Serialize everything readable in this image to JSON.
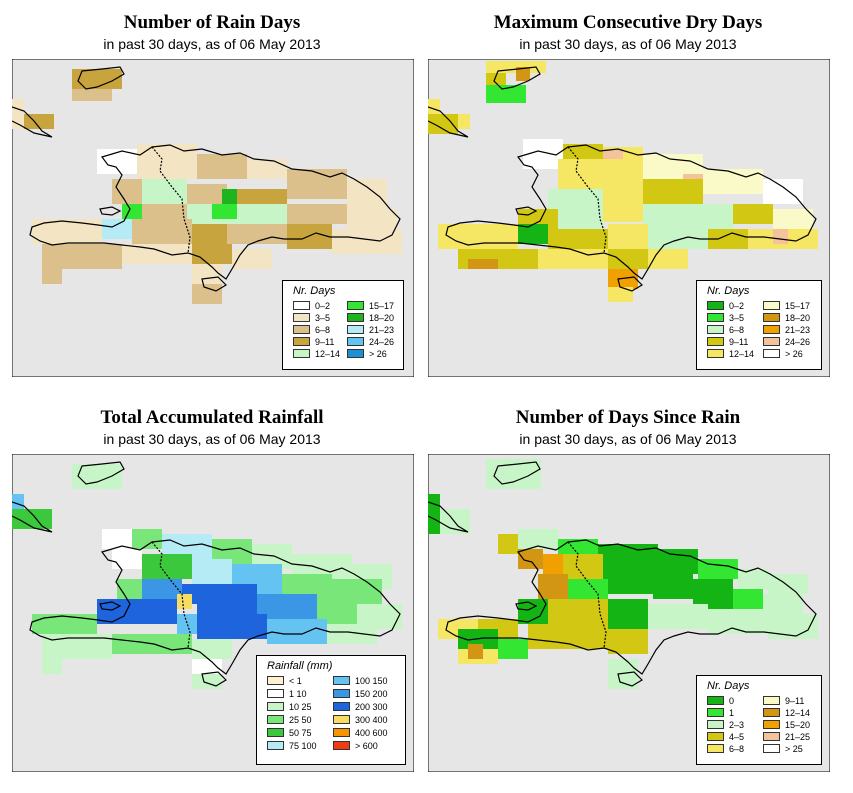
{
  "subtitle": "in past 30 days, as of  06 May 2013",
  "panels": [
    {
      "title": "Number of Rain Days",
      "legend_title": "Nr. Days",
      "legend": [
        {
          "label": "0–2",
          "color": "#ffffff"
        },
        {
          "label": "3–5",
          "color": "#f3e4c4"
        },
        {
          "label": "6–8",
          "color": "#dcc08c"
        },
        {
          "label": "9–11",
          "color": "#c8a43e"
        },
        {
          "label": "12–14",
          "color": "#c8f5c8"
        },
        {
          "label": "15–17",
          "color": "#32e632"
        },
        {
          "label": "18–20",
          "color": "#1eb41e"
        },
        {
          "label": "21–23",
          "color": "#b4ebf5"
        },
        {
          "label": "24–26",
          "color": "#64c3f0"
        },
        {
          "label": "> 26",
          "color": "#1e91d2"
        }
      ]
    },
    {
      "title": "Maximum Consecutive Dry Days",
      "legend_title": "Nr. Days",
      "legend": [
        {
          "label": "0–2",
          "color": "#14b414"
        },
        {
          "label": "3–5",
          "color": "#32e632"
        },
        {
          "label": "6–8",
          "color": "#c8f5c8"
        },
        {
          "label": "9–11",
          "color": "#d2c814"
        },
        {
          "label": "12–14",
          "color": "#f5e664"
        },
        {
          "label": "15–17",
          "color": "#fafac8"
        },
        {
          "label": "18–20",
          "color": "#d29614"
        },
        {
          "label": "21–23",
          "color": "#f0a000"
        },
        {
          "label": "24–26",
          "color": "#f5c39b"
        },
        {
          "label": "> 26",
          "color": "#ffffff"
        }
      ]
    },
    {
      "title": "Total Accumulated Rainfall",
      "legend_title": "Rainfall (mm)",
      "legend": [
        {
          "label": "< 1",
          "color": "#fff0d2"
        },
        {
          "label": "1    10",
          "color": "#ffffff"
        },
        {
          "label": "10    25",
          "color": "#c8f5c8"
        },
        {
          "label": "25    50",
          "color": "#78e678"
        },
        {
          "label": "50    75",
          "color": "#3cc83c"
        },
        {
          "label": "75   100",
          "color": "#b4ebf5"
        },
        {
          "label": "100  150",
          "color": "#64c3f0"
        },
        {
          "label": "150  200",
          "color": "#3c96e6"
        },
        {
          "label": "200  300",
          "color": "#1e64dc"
        },
        {
          "label": "300  400",
          "color": "#f5dc64"
        },
        {
          "label": "400  600",
          "color": "#f59600"
        },
        {
          "label": "> 600",
          "color": "#f03c14"
        }
      ]
    },
    {
      "title": "Number of Days Since Rain",
      "legend_title": "Nr. Days",
      "legend": [
        {
          "label": "0",
          "color": "#14b414"
        },
        {
          "label": "1",
          "color": "#32e632"
        },
        {
          "label": "2–3",
          "color": "#c8f5c8"
        },
        {
          "label": "4–5",
          "color": "#d2c814"
        },
        {
          "label": "6–8",
          "color": "#f5e664"
        },
        {
          "label": "9–11",
          "color": "#fafac8"
        },
        {
          "label": "12–14",
          "color": "#d29614"
        },
        {
          "label": "15–20",
          "color": "#f0a000"
        },
        {
          "label": "21–25",
          "color": "#f5c39b"
        },
        {
          "label": "> 25",
          "color": "#ffffff"
        }
      ]
    }
  ]
}
